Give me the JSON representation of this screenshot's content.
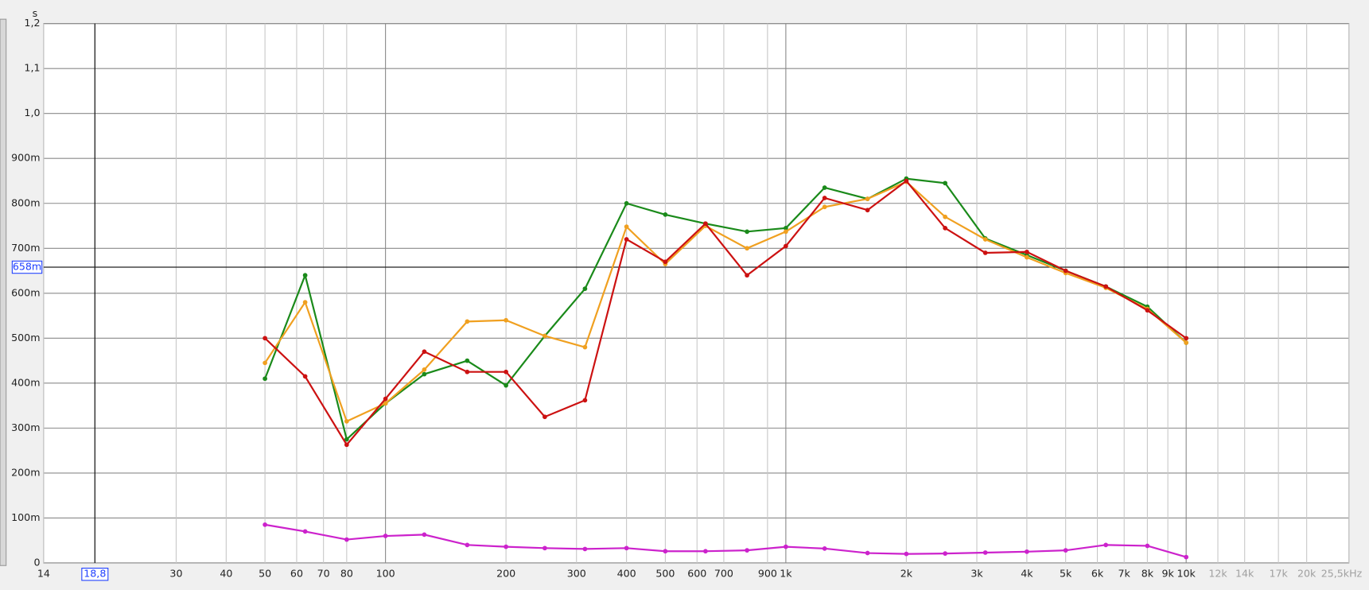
{
  "chart_data": {
    "type": "line",
    "y_label": "s",
    "xscale": "log",
    "x": [
      50,
      63,
      80,
      100,
      125,
      160,
      200,
      250,
      315,
      400,
      500,
      630,
      800,
      1000,
      1250,
      1600,
      2000,
      2500,
      3150,
      4000,
      5000,
      6300,
      8000,
      10000
    ],
    "series": [
      {
        "color": "#1a8a1a",
        "values": [
          0.41,
          0.64,
          0.275,
          0.355,
          0.42,
          0.45,
          0.395,
          0.505,
          0.61,
          0.8,
          0.775,
          0.755,
          0.737,
          0.745,
          0.835,
          0.81,
          0.855,
          0.845,
          0.722,
          0.685,
          0.65,
          0.615,
          0.57,
          0.49
        ]
      },
      {
        "color": "#f0a020",
        "values": [
          0.445,
          0.58,
          0.315,
          0.355,
          0.43,
          0.537,
          0.54,
          0.505,
          0.48,
          0.748,
          0.665,
          0.75,
          0.7,
          0.737,
          0.792,
          0.81,
          0.848,
          0.77,
          0.72,
          0.68,
          0.645,
          0.612,
          0.565,
          0.49
        ]
      },
      {
        "color": "#cc1111",
        "values": [
          0.5,
          0.415,
          0.263,
          0.365,
          0.47,
          0.425,
          0.425,
          0.325,
          0.362,
          0.72,
          0.67,
          0.755,
          0.64,
          0.705,
          0.812,
          0.785,
          0.85,
          0.745,
          0.69,
          0.692,
          0.65,
          0.615,
          0.562,
          0.5
        ]
      },
      {
        "color": "#cc22cc",
        "values": [
          0.085,
          0.07,
          0.052,
          0.06,
          0.063,
          0.04,
          0.036,
          0.033,
          0.031,
          0.033,
          0.026,
          0.026,
          0.028,
          0.036,
          0.032,
          0.022,
          0.02,
          0.021,
          0.023,
          0.025,
          0.028,
          0.04,
          0.038,
          0.013
        ]
      }
    ],
    "xlim": [
      14,
      25500
    ],
    "ylim": [
      0,
      1.2
    ],
    "xticks": [
      14,
      30,
      40,
      50,
      60,
      70,
      80,
      100,
      200,
      300,
      400,
      500,
      600,
      700,
      900,
      {
        "value": 1000,
        "label": "1k"
      },
      {
        "value": 2000,
        "label": "2k"
      },
      {
        "value": 3000,
        "label": "3k"
      },
      {
        "value": 4000,
        "label": "4k"
      },
      {
        "value": 5000,
        "label": "5k"
      },
      {
        "value": 6000,
        "label": "6k"
      },
      {
        "value": 7000,
        "label": "7k"
      },
      {
        "value": 8000,
        "label": "8k"
      },
      {
        "value": 9000,
        "label": "9k"
      },
      {
        "value": 10000,
        "label": "10k"
      },
      {
        "value": 12000,
        "label": "12k"
      },
      {
        "value": 14000,
        "label": "14k"
      },
      {
        "value": 17000,
        "label": "17k"
      },
      {
        "value": 20000,
        "label": "20k"
      },
      {
        "value": 25500,
        "label": "25,5kHz"
      }
    ],
    "yticks": [
      0,
      {
        "value": 0.1,
        "label": "100m"
      },
      {
        "value": 0.2,
        "label": "200m"
      },
      {
        "value": 0.3,
        "label": "300m"
      },
      {
        "value": 0.4,
        "label": "400m"
      },
      {
        "value": 0.5,
        "label": "500m"
      },
      {
        "value": 0.6,
        "label": "600m"
      },
      {
        "value": 0.7,
        "label": "700m"
      },
      {
        "value": 0.8,
        "label": "800m"
      },
      {
        "value": 0.9,
        "label": "900m"
      },
      {
        "value": 1.0,
        "label": "1,0"
      },
      {
        "value": 1.1,
        "label": "1,1"
      },
      {
        "value": 1.2,
        "label": "1,2"
      }
    ],
    "cursor": {
      "x": {
        "value": 18.8,
        "label": "18,8"
      },
      "y": {
        "value": 0.658,
        "label": "658m"
      }
    },
    "grid": true
  }
}
